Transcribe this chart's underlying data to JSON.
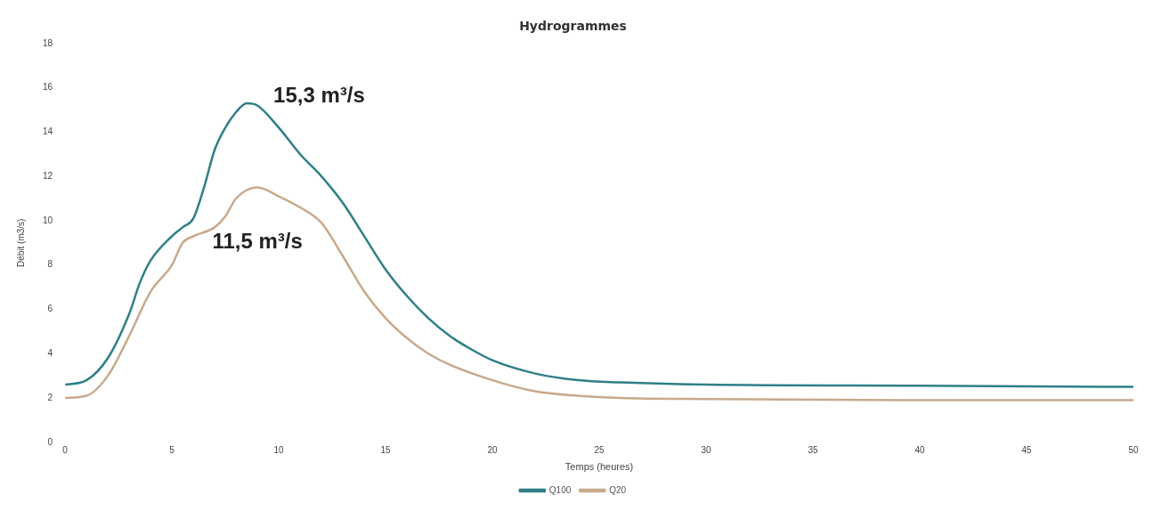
{
  "chart_data": {
    "type": "line",
    "title": "Hydrogrammes",
    "xlabel": "Temps (heures)",
    "ylabel": "Débit (m3/s)",
    "xlim": [
      0,
      50
    ],
    "xticks": [
      0,
      5,
      10,
      15,
      20,
      25,
      30,
      35,
      40,
      45,
      50
    ],
    "ylim": [
      0,
      18
    ],
    "yticks": [
      0,
      2,
      4,
      6,
      8,
      10,
      12,
      14,
      16,
      18
    ],
    "legend": "bottom",
    "marker": "none",
    "line_style": "solid",
    "annotations": [
      {
        "text": "15,3 m³/s",
        "x": 8.5,
        "y": 15.3
      },
      {
        "text": "11,5 m³/s",
        "x": 9,
        "y": 11.5
      }
    ],
    "series": [
      {
        "name": "Q100",
        "color": "#2f7f88",
        "x": [
          0,
          1,
          2,
          3,
          3.5,
          4,
          5,
          5.5,
          6,
          6.5,
          7,
          7.5,
          8,
          8.5,
          9,
          10,
          11,
          12,
          13,
          14,
          15,
          16,
          17,
          18,
          19,
          20,
          22,
          24,
          26,
          30,
          40,
          50
        ],
        "values": [
          2.6,
          2.8,
          3.8,
          5.8,
          7.2,
          8.2,
          9.3,
          9.7,
          10.1,
          11.5,
          13.2,
          14.2,
          14.9,
          15.3,
          15.2,
          14.2,
          13,
          12,
          10.8,
          9.3,
          7.8,
          6.6,
          5.6,
          4.8,
          4.2,
          3.7,
          3.1,
          2.8,
          2.7,
          2.6,
          2.55,
          2.5
        ]
      },
      {
        "name": "Q20",
        "color": "#c9a98c",
        "x": [
          0,
          1,
          2,
          3,
          4,
          5,
          5.5,
          6,
          7,
          7.5,
          8,
          9,
          10,
          11,
          12,
          13,
          14,
          15,
          16,
          17,
          18,
          20,
          22,
          24,
          26,
          30,
          40,
          50
        ],
        "values": [
          2,
          2.1,
          3,
          4.8,
          6.8,
          8,
          9,
          9.3,
          9.7,
          10.2,
          11,
          11.5,
          11.1,
          10.6,
          9.9,
          8.4,
          6.8,
          5.6,
          4.7,
          4,
          3.5,
          2.8,
          2.3,
          2.1,
          2,
          1.95,
          1.9,
          1.9
        ]
      }
    ]
  }
}
